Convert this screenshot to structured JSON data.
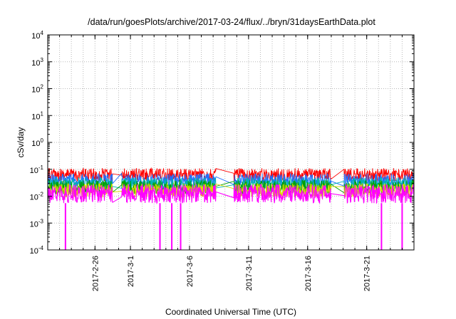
{
  "chart_data": {
    "type": "line",
    "title": "/data/run/goesPlots/archive/2017-03-24/flux/../bryn/31daysEarthData.plot",
    "xlabel": "Coordinated Universal Time (UTC)",
    "ylabel": "cSv/day",
    "yscale": "log",
    "ylim": [
      0.0001,
      10000
    ],
    "xlim": [
      "2017-02-22",
      "2017-03-25"
    ],
    "grid": true,
    "legend": "none",
    "y_ticks": [
      {
        "mant": "10",
        "exp": "-4",
        "value": 0.0001
      },
      {
        "mant": "10",
        "exp": "-3",
        "value": 0.001
      },
      {
        "mant": "10",
        "exp": "-2",
        "value": 0.01
      },
      {
        "mant": "10",
        "exp": "-1",
        "value": 0.1
      },
      {
        "mant": "10",
        "exp": "0",
        "value": 1
      },
      {
        "mant": "10",
        "exp": "1",
        "value": 10
      },
      {
        "mant": "10",
        "exp": "2",
        "value": 100
      },
      {
        "mant": "10",
        "exp": "3",
        "value": 1000
      },
      {
        "mant": "10",
        "exp": "4",
        "value": 10000
      }
    ],
    "x_ticks": [
      "2017-2-26",
      "2017-3-1",
      "2017-3-6",
      "2017-3-11",
      "2017-3-16",
      "2017-3-21"
    ],
    "x_tick_dates": [
      "2017-02-26",
      "2017-03-01",
      "2017-03-06",
      "2017-03-11",
      "2017-03-16",
      "2017-03-21"
    ],
    "data_segments": [
      {
        "start": "2017-02-22",
        "end": "2017-02-27T12:00"
      },
      {
        "start": "2017-02-28T06:00",
        "end": "2017-03-08T06:00"
      },
      {
        "start": "2017-03-09T18:00",
        "end": "2017-03-18"
      },
      {
        "start": "2017-03-19T02:00",
        "end": "2017-03-25"
      }
    ],
    "series": [
      {
        "color": "#ff0000",
        "low": 0.035,
        "high": 0.11
      },
      {
        "color": "#1f6fff",
        "low": 0.022,
        "high": 0.07
      },
      {
        "color": "#00b3b3",
        "low": 0.016,
        "high": 0.05
      },
      {
        "color": "#00a000",
        "low": 0.012,
        "high": 0.04
      },
      {
        "color": "#d8d800",
        "low": 0.009,
        "high": 0.03
      },
      {
        "color": "#ff00ff",
        "low": 0.0055,
        "high": 0.028
      }
    ],
    "dropouts": [
      "2017-02-23T12:00",
      "2017-03-03T12:00",
      "2017-03-04T12:00",
      "2017-03-05T06:00",
      "2017-03-22T06:00",
      "2017-03-24T00:00"
    ],
    "dropout_min": 0.0001
  }
}
